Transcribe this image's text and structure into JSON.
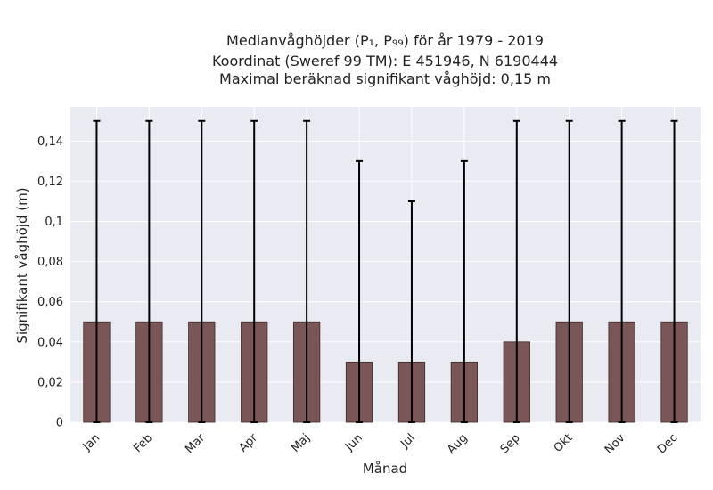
{
  "chart_data": {
    "type": "bar",
    "title_lines": [
      "Medianvåghöjder (P₁, P₉₉) för år 1979 - 2019",
      "Koordinat (Sweref 99 TM): E 451946, N 6190444",
      "Maximal beräknad signifikant våghöjd: 0,15 m"
    ],
    "xlabel": "Månad",
    "ylabel": "Signifikant våghöjd (m)",
    "categories": [
      "Jan",
      "Feb",
      "Mar",
      "Apr",
      "Maj",
      "Jun",
      "Jul",
      "Aug",
      "Sep",
      "Okt",
      "Nov",
      "Dec"
    ],
    "values": [
      0.05,
      0.05,
      0.05,
      0.05,
      0.05,
      0.03,
      0.03,
      0.03,
      0.04,
      0.05,
      0.05,
      0.05
    ],
    "error_low": [
      0,
      0,
      0,
      0,
      0,
      0,
      0,
      0,
      0,
      0,
      0,
      0
    ],
    "error_high": [
      0.15,
      0.15,
      0.15,
      0.15,
      0.15,
      0.13,
      0.11,
      0.13,
      0.15,
      0.15,
      0.15,
      0.15
    ],
    "yticks": [
      0,
      0.02,
      0.04,
      0.06,
      0.08,
      0.1,
      0.12,
      0.14
    ],
    "ytick_labels": [
      "0",
      "0,02",
      "0,04",
      "0,06",
      "0,08",
      "0,1",
      "0,12",
      "0,14"
    ],
    "ylim": [
      0,
      0.157
    ],
    "grid": true,
    "colors": {
      "bar_fill": "#7a5656",
      "bar_edge": "#3a2a2a",
      "error_bar": "#000000",
      "plot_bg": "#eaeaf2",
      "grid": "#ffffff"
    }
  }
}
